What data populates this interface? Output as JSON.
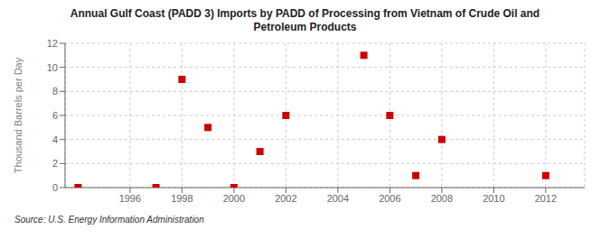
{
  "chart_data": {
    "type": "scatter",
    "title": "Annual Gulf Coast (PADD 3) Imports by PADD of Processing from Vietnam of Crude Oil and\nPetroleum Products",
    "ylabel": "Thousand Barrels per Day",
    "annotations": [
      "Source: U.S. Energy Information Administration"
    ],
    "x": [
      1994,
      1997,
      1998,
      1999,
      2000,
      2001,
      2002,
      2005,
      2006,
      2007,
      2008,
      2012
    ],
    "values": [
      0,
      0,
      9,
      5,
      0,
      3,
      6,
      11,
      6,
      1,
      4,
      1
    ],
    "color": "#cc0000",
    "marker": "square",
    "xlim": [
      1993.5,
      2013.5
    ],
    "ylim": [
      0,
      12
    ],
    "xticks": [
      1996,
      1998,
      2000,
      2002,
      2004,
      2006,
      2008,
      2010,
      2012
    ],
    "yticks": [
      0,
      2,
      4,
      6,
      8,
      10,
      12
    ],
    "grid": true
  }
}
